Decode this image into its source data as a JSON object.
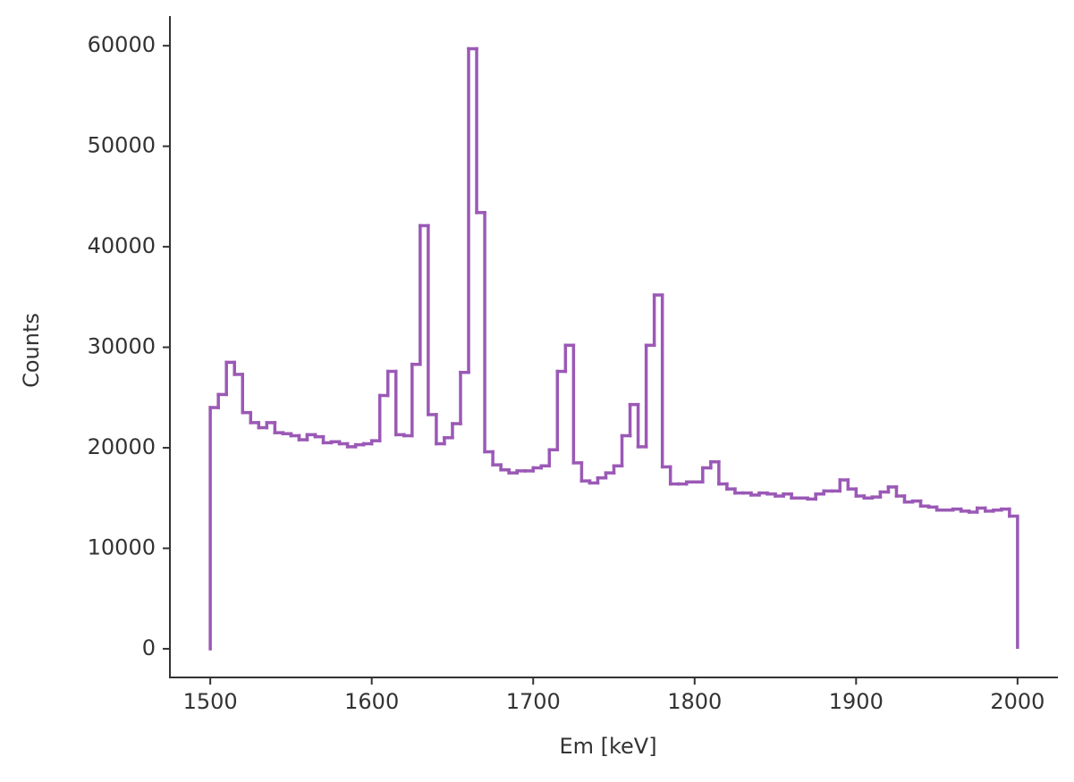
{
  "chart_data": {
    "type": "histogram",
    "x_label": "Em [keV]",
    "y_label": "Counts",
    "color": "#9b59b6",
    "bins": [
      1500,
      1505,
      1510,
      1515,
      1520,
      1525,
      1530,
      1535,
      1540,
      1545,
      1550,
      1555,
      1560,
      1565,
      1570,
      1575,
      1580,
      1585,
      1590,
      1595,
      1600,
      1605,
      1610,
      1615,
      1620,
      1625,
      1630,
      1635,
      1640,
      1645,
      1650,
      1655,
      1660,
      1665,
      1670,
      1675,
      1680,
      1685,
      1690,
      1695,
      1700,
      1705,
      1710,
      1715,
      1720,
      1725,
      1730,
      1735,
      1740,
      1745,
      1750,
      1755,
      1760,
      1765,
      1770,
      1775,
      1780,
      1785,
      1790,
      1795,
      1800,
      1805,
      1810,
      1815,
      1820,
      1825,
      1830,
      1835,
      1840,
      1845,
      1850,
      1855,
      1860,
      1865,
      1870,
      1875,
      1880,
      1885,
      1890,
      1895,
      1900,
      1905,
      1910,
      1915,
      1920,
      1925,
      1930,
      1935,
      1940,
      1945,
      1950,
      1955,
      1960,
      1965,
      1970,
      1975,
      1980,
      1985,
      1990,
      1995,
      2000
    ],
    "values": [
      24000,
      25300,
      28500,
      27300,
      23500,
      22500,
      22000,
      22500,
      21500,
      21400,
      21200,
      20800,
      21300,
      21100,
      20500,
      20600,
      20400,
      20100,
      20300,
      20400,
      20700,
      25200,
      27600,
      21300,
      21200,
      28300,
      42100,
      23300,
      20400,
      21000,
      22400,
      27500,
      59700,
      43400,
      19600,
      18300,
      17800,
      17500,
      17700,
      17700,
      18000,
      18200,
      19800,
      27600,
      30200,
      18500,
      16700,
      16500,
      17000,
      17500,
      18200,
      21200,
      24300,
      20100,
      30200,
      35200,
      18100,
      16400,
      16400,
      16600,
      16600,
      18000,
      18600,
      16400,
      15900,
      15500,
      15500,
      15300,
      15500,
      15400,
      15200,
      15400,
      15000,
      15000,
      14900,
      15400,
      15700,
      15700,
      16800,
      15900,
      15200,
      15000,
      15100,
      15600,
      16100,
      15200,
      14600,
      14700,
      14200,
      14100,
      13800,
      13800,
      13900,
      13700,
      13600,
      14000,
      13700,
      13800,
      13900,
      13200
    ],
    "xlim": [
      1475,
      2025
    ],
    "ylim": [
      -2850,
      62950
    ],
    "xticks": [
      1500,
      1600,
      1700,
      1800,
      1900,
      2000
    ],
    "yticks": [
      0,
      10000,
      20000,
      30000,
      40000,
      50000,
      60000
    ]
  }
}
